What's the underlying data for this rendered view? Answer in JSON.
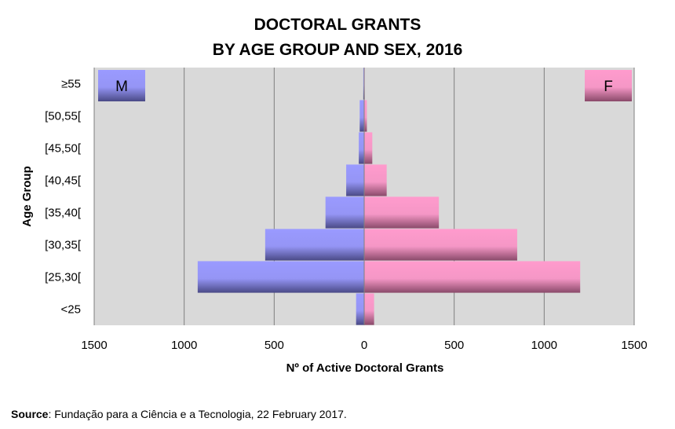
{
  "chart_data": {
    "type": "bar",
    "orientation": "horizontal-population-pyramid",
    "title_lines": [
      "DOCTORAL GRANTS",
      "BY AGE GROUP AND SEX, 2016"
    ],
    "categories": [
      "≥55",
      "[50,55[",
      "[45,50[",
      "[40,45[",
      "[35,40[",
      "[30,35[",
      "[25,30[",
      "<25"
    ],
    "series": [
      {
        "name": "M",
        "values": [
          5,
          25,
          30,
          100,
          215,
          550,
          925,
          45
        ],
        "color": "#9999ff",
        "side": "left"
      },
      {
        "name": "F",
        "values": [
          3,
          15,
          45,
          125,
          415,
          850,
          1200,
          55
        ],
        "color": "#ff99cc",
        "side": "right"
      }
    ],
    "xlabel": "Nº of Active Doctoral Grants",
    "ylabel": "Age Group",
    "xlim": [
      -1500,
      1500
    ],
    "xticks": [
      -1500,
      -1000,
      -500,
      0,
      500,
      1000,
      1500
    ],
    "xtick_labels": [
      "1500",
      "1000",
      "500",
      "0",
      "500",
      "1000",
      "1500"
    ],
    "grid": "vertical",
    "plot_background": "#d9d9d9",
    "legend_placement": "inside top corners"
  },
  "source": {
    "label": "Source",
    "text": ": Fundação para a Ciência e a Tecnologia, 22 February 2017."
  }
}
